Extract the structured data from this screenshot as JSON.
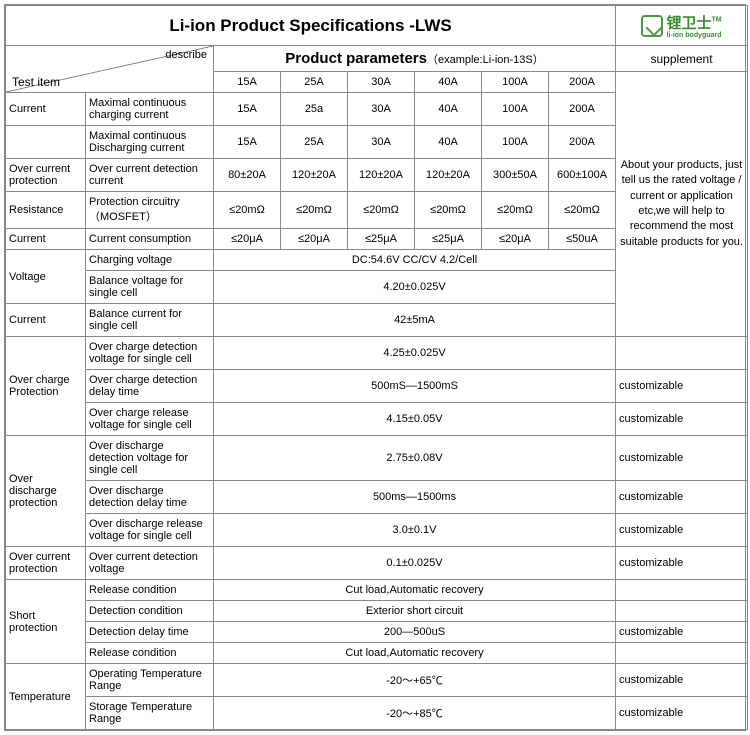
{
  "title": "Li-ion Product Specifications -LWS",
  "logo": {
    "chinese": "锂卫士",
    "sub": "li-ion bodyguard",
    "tm": "TM"
  },
  "headers": {
    "params": "Product parameters",
    "example": "（example:Li-ion-13S）",
    "supplement": "supplement",
    "describe": "describe",
    "test_item": "Test  item"
  },
  "columns": [
    "15A",
    "25A",
    "30A",
    "40A",
    "100A",
    "200A"
  ],
  "supp_main": "About your products, just tell us the rated voltage /  current or application etc,we will help to recommend the most suitable products for you.",
  "customizable": "customizable",
  "rows": {
    "r1": {
      "cat": "Current",
      "desc": "Maximal continuous charging current",
      "v": [
        "15A",
        "25a",
        "30A",
        "40A",
        "100A",
        "200A"
      ]
    },
    "r2": {
      "desc": "Maximal continuous Discharging current",
      "v": [
        "15A",
        "25A",
        "30A",
        "40A",
        "100A",
        "200A"
      ]
    },
    "r3": {
      "cat": "Over current protection",
      "desc": "Over current detection current",
      "v": [
        "80±20A",
        "120±20A",
        "120±20A",
        "120±20A",
        "300±50A",
        "600±100A"
      ]
    },
    "r4": {
      "cat": "Resistance",
      "desc": "Protection  circuitry （MOSFET）",
      "v": [
        "≤20mΩ",
        "≤20mΩ",
        "≤20mΩ",
        "≤20mΩ",
        "≤20mΩ",
        "≤20mΩ"
      ]
    },
    "r5": {
      "cat": "Current",
      "desc": "Current consumption",
      "v": [
        "≤20μA",
        "≤20μA",
        "≤25μA",
        "≤25μA",
        "≤20μA",
        "≤50uA"
      ]
    },
    "r6": {
      "cat": "Voltage",
      "desc": "Charging voltage",
      "merged": "DC:54.6V  CC/CV   4.2/Cell"
    },
    "r7": {
      "desc": "Balance voltage for single cell",
      "merged": "4.20±0.025V"
    },
    "r8": {
      "cat": "Current",
      "desc": "Balance current for single cell",
      "merged": "42±5mA"
    },
    "r9": {
      "cat": "Over charge Protection",
      "desc": "Over charge detection voltage for single cell",
      "merged": "4.25±0.025V"
    },
    "r10": {
      "desc": "Over charge detection delay time",
      "merged": "500mS—1500mS"
    },
    "r11": {
      "desc": "Over charge release voltage for single cell",
      "merged": "4.15±0.05V"
    },
    "r12": {
      "cat": "Over discharge protection",
      "desc": "Over discharge detection voltage for single cell",
      "merged": "2.75±0.08V"
    },
    "r13": {
      "desc": "Over discharge detection delay time",
      "merged": "500ms—1500ms"
    },
    "r14": {
      "desc": "Over discharge release voltage for single cell",
      "merged": "3.0±0.1V"
    },
    "r15": {
      "cat": "Over current protection",
      "desc": "Over current detection voltage",
      "merged": "0.1±0.025V"
    },
    "r16": {
      "cat": "Short protection",
      "desc": "Release condition",
      "merged": "Cut load,Automatic recovery"
    },
    "r17": {
      "desc": "Detection condition",
      "merged": "Exterior short circuit"
    },
    "r18": {
      "desc": "Detection delay time",
      "merged": "200—500uS"
    },
    "r19": {
      "desc": "Release condition",
      "merged": "Cut load,Automatic recovery"
    },
    "r20": {
      "cat": "Temperature",
      "desc": "Operating Temperature Range",
      "merged": "-20～+65℃"
    },
    "r21": {
      "desc": "Storage Temperature Range",
      "merged": "-20～+85℃"
    }
  }
}
